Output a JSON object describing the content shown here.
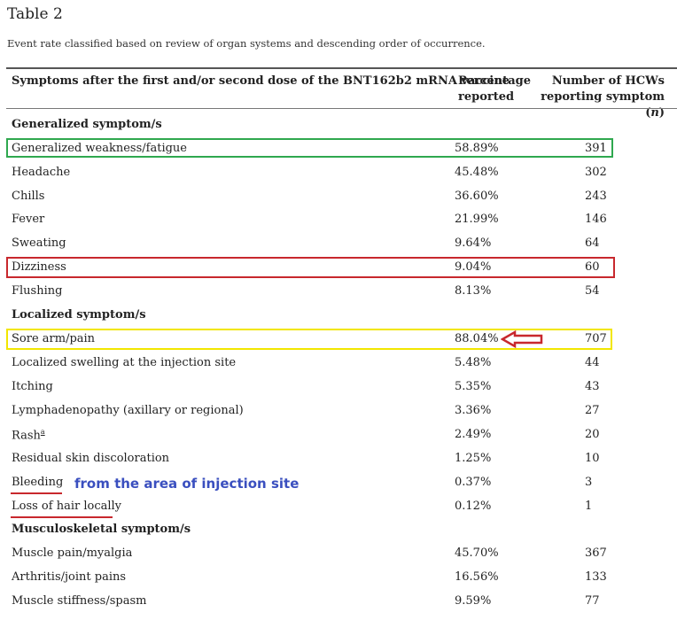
{
  "title": "Table 2",
  "caption": "Event rate classified based on review of organ systems and descending order of occurrence.",
  "headers": {
    "symptom": "Symptoms after the first and/or second dose of the BNT162b2 mRNA vaccine",
    "pct_line1": "Percentage",
    "pct_line2": "reported",
    "num_line1": "Number of HCWs",
    "num_line2": "reporting symptom (",
    "num_n": "n",
    "num_close": ")"
  },
  "sections": [
    {
      "name": "Generalized symptom/s",
      "rows": [
        {
          "symptom": "Generalized weakness/fatigue",
          "pct": "58.89%",
          "n": "391"
        },
        {
          "symptom": "Headache",
          "pct": "45.48%",
          "n": "302"
        },
        {
          "symptom": "Chills",
          "pct": "36.60%",
          "n": "243"
        },
        {
          "symptom": "Fever",
          "pct": "21.99%",
          "n": "146"
        },
        {
          "symptom": "Sweating",
          "pct": "9.64%",
          "n": "64"
        },
        {
          "symptom": "Dizziness",
          "pct": "9.04%",
          "n": "60"
        },
        {
          "symptom": "Flushing",
          "pct": "8.13%",
          "n": "54"
        }
      ]
    },
    {
      "name": "Localized symptom/s",
      "rows": [
        {
          "symptom": "Sore arm/pain",
          "pct": "88.04%",
          "n": "707"
        },
        {
          "symptom": "Localized swelling at the injection site",
          "pct": "5.48%",
          "n": "44"
        },
        {
          "symptom": "Itching",
          "pct": "5.35%",
          "n": "43"
        },
        {
          "symptom": "Lymphadenopathy (axillary or regional)",
          "pct": "3.36%",
          "n": "27"
        },
        {
          "symptom": "Rash",
          "footnote": "a",
          "pct": "2.49%",
          "n": "20"
        },
        {
          "symptom": "Residual skin discoloration",
          "pct": "1.25%",
          "n": "10"
        },
        {
          "symptom": "Bleeding",
          "pct": "0.37%",
          "n": "3"
        },
        {
          "symptom": "Loss of hair locally",
          "pct": "0.12%",
          "n": "1"
        }
      ]
    },
    {
      "name": "Musculoskeletal symptom/s",
      "rows": [
        {
          "symptom": "Muscle pain/myalgia",
          "pct": "45.70%",
          "n": "367"
        },
        {
          "symptom": "Arthritis/joint pains",
          "pct": "16.56%",
          "n": "133"
        },
        {
          "symptom": "Muscle stiffness/spasm",
          "pct": "9.59%",
          "n": "77"
        }
      ]
    }
  ],
  "annotation": "from the area of injection site",
  "colors": {
    "green": "#2fa84f",
    "red": "#c8282d",
    "yellow": "#f2e600",
    "annotation": "#3a4fbf"
  }
}
